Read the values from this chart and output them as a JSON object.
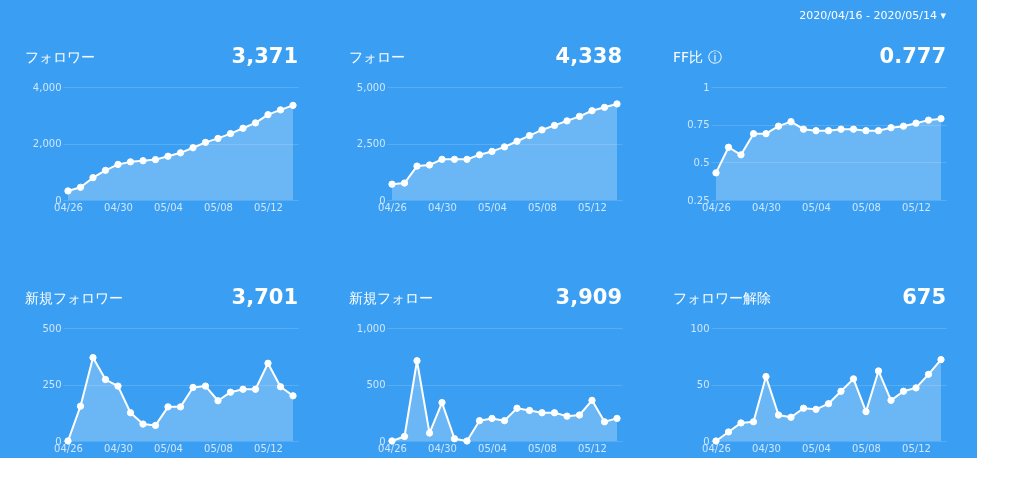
{
  "chart_data": [
    {
      "type": "area",
      "title": "フォロワー",
      "subtitle": "3,371",
      "categories": [
        "04/26",
        null,
        null,
        null,
        "04/30",
        null,
        null,
        null,
        "05/04",
        null,
        null,
        null,
        "05/08",
        null,
        null,
        null,
        "05/12",
        null,
        null
      ],
      "values": [
        320,
        450,
        790,
        1050,
        1260,
        1350,
        1390,
        1430,
        1550,
        1670,
        1850,
        2040,
        2180,
        2350,
        2540,
        2730,
        3020,
        3190,
        3350
      ],
      "color": "#ffffff",
      "ylim": [
        0,
        4000
      ],
      "yticks": [
        0,
        {
          "value": 2000,
          "label": "2,000"
        },
        {
          "value": 4000,
          "label": "4,000"
        }
      ],
      "grid": "y",
      "marker": "circle",
      "line_style": "solid"
    },
    {
      "type": "area",
      "title": "フォロー",
      "subtitle": "4,338",
      "categories": [
        "04/26",
        null,
        null,
        null,
        "04/30",
        null,
        null,
        null,
        "05/04",
        null,
        null,
        null,
        "05/08",
        null,
        null,
        null,
        "05/12",
        null,
        null
      ],
      "values": [
        700,
        750,
        1500,
        1550,
        1800,
        1800,
        1800,
        2000,
        2150,
        2350,
        2600,
        2850,
        3100,
        3300,
        3500,
        3700,
        3950,
        4100,
        4250
      ],
      "color": "#ffffff",
      "ylim": [
        0,
        5000
      ],
      "yticks": [
        0,
        {
          "value": 2500,
          "label": "2,500"
        },
        {
          "value": 5000,
          "label": "5,000"
        }
      ],
      "grid": "y",
      "marker": "circle",
      "line_style": "solid"
    },
    {
      "type": "area",
      "title": "FF比 ⓘ",
      "subtitle": "0.777",
      "annotations": [
        "2020/04/16   -   2020/05/14   ▾"
      ],
      "categories": [
        "04/26",
        null,
        null,
        null,
        "04/30",
        null,
        null,
        null,
        "05/04",
        null,
        null,
        null,
        "05/08",
        null,
        null,
        null,
        "05/12",
        null,
        null
      ],
      "values": [
        0.43,
        0.6,
        0.55,
        0.69,
        0.69,
        0.74,
        0.77,
        0.72,
        0.71,
        0.71,
        0.72,
        0.72,
        0.71,
        0.71,
        0.73,
        0.74,
        0.76,
        0.78,
        0.79
      ],
      "color": "#ffffff",
      "ylim": [
        0.25,
        1
      ],
      "yticks": [
        0.25,
        0.5,
        0.75,
        1
      ],
      "grid": "y",
      "marker": "circle",
      "line_style": "solid"
    },
    {
      "type": "area",
      "title": "新規フォロワー",
      "subtitle": "3,701",
      "categories": [
        "04/26",
        null,
        null,
        null,
        "04/30",
        null,
        null,
        null,
        "05/04",
        null,
        null,
        null,
        "05/08",
        null,
        null,
        null,
        "05/12",
        null,
        null
      ],
      "values": [
        0,
        154,
        369,
        272,
        243,
        125,
        75,
        69,
        151,
        151,
        237,
        243,
        178,
        216,
        229,
        229,
        344,
        240,
        200
      ],
      "color": "#ffffff",
      "ylim": [
        0,
        500
      ],
      "yticks": [
        0,
        250,
        500
      ],
      "grid": "y",
      "marker": "circle",
      "line_style": "solid"
    },
    {
      "type": "area",
      "title": "新規フォロー",
      "subtitle": "3,909",
      "categories": [
        "04/26",
        null,
        null,
        null,
        "04/30",
        null,
        null,
        null,
        "05/04",
        null,
        null,
        null,
        "05/08",
        null,
        null,
        null,
        "05/12",
        null,
        null
      ],
      "values": [
        0,
        40,
        710,
        70,
        340,
        20,
        0,
        180,
        200,
        180,
        290,
        270,
        250,
        250,
        220,
        230,
        360,
        170,
        200
      ],
      "color": "#ffffff",
      "ylim": [
        0,
        1000
      ],
      "yticks": [
        0,
        500,
        {
          "value": 1000,
          "label": "1,000"
        }
      ],
      "grid": "y",
      "marker": "circle",
      "line_style": "solid"
    },
    {
      "type": "area",
      "title": "フォロワー解除",
      "subtitle": "675",
      "categories": [
        "04/26",
        null,
        null,
        null,
        "04/30",
        null,
        null,
        null,
        "05/04",
        null,
        null,
        null,
        "05/08",
        null,
        null,
        null,
        "05/12",
        null,
        null
      ],
      "values": [
        0,
        8,
        16,
        17,
        57,
        23,
        21,
        29,
        28,
        33,
        44,
        55,
        26,
        62,
        36,
        44,
        47,
        59,
        72
      ],
      "color": "#ffffff",
      "ylim": [
        0,
        100
      ],
      "yticks": [
        0,
        50,
        100
      ],
      "grid": "y",
      "marker": "circle",
      "line_style": "solid"
    }
  ]
}
